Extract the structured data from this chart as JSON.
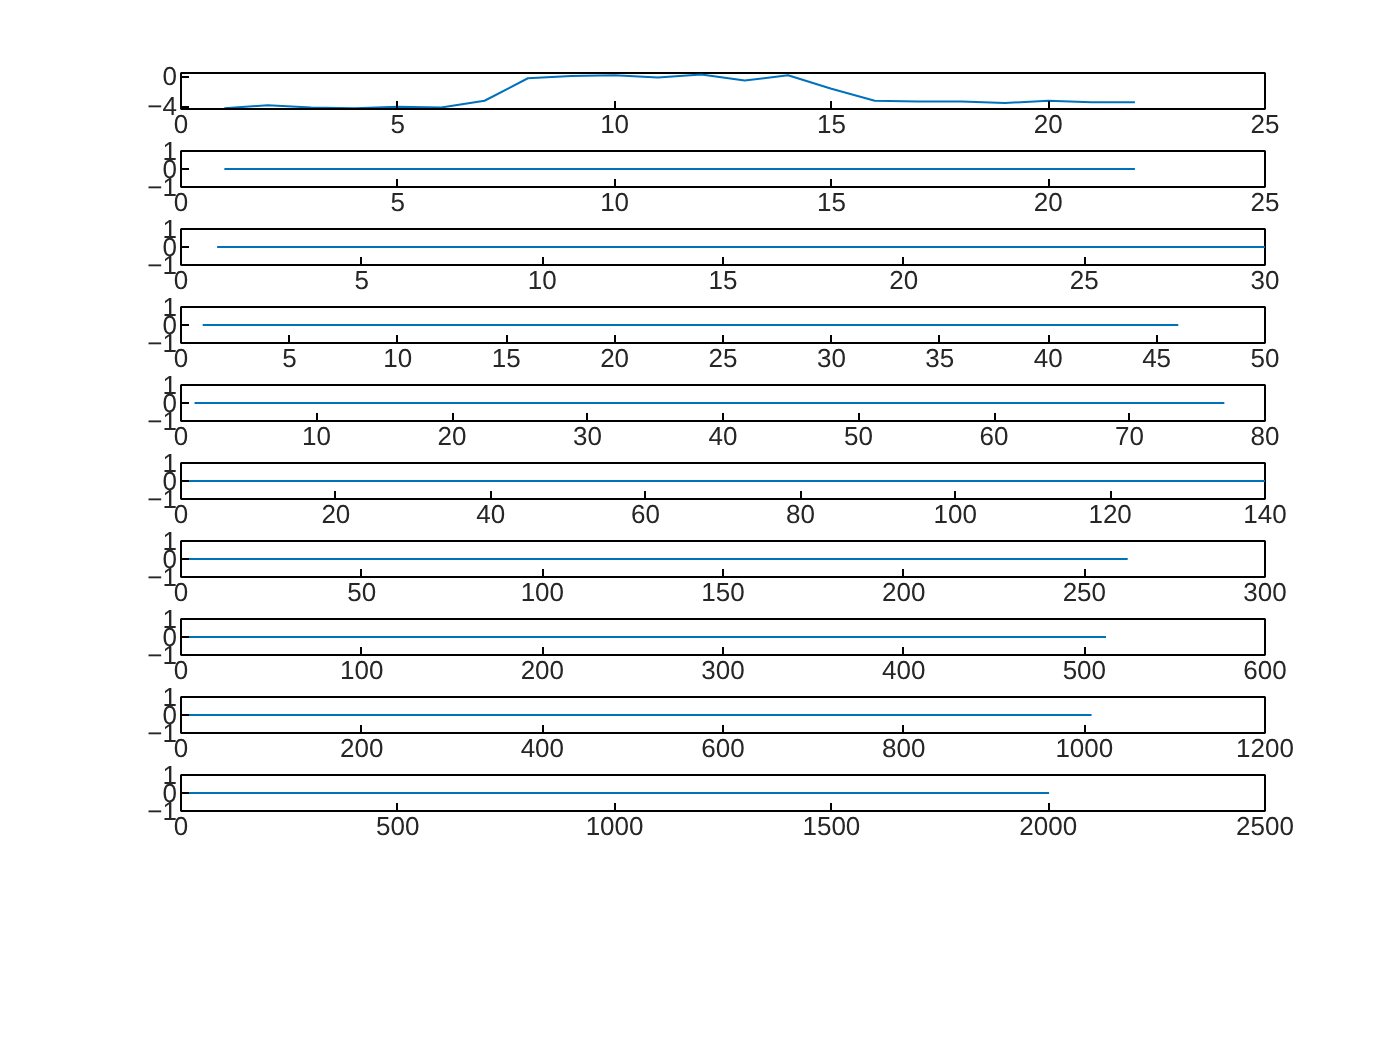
{
  "chart_data": [
    {
      "type": "line",
      "x": [
        1,
        2,
        3,
        4,
        5,
        6,
        7,
        8,
        9,
        10,
        11,
        12,
        13,
        14,
        15,
        16,
        17,
        18,
        19,
        20,
        21,
        22
      ],
      "series": [
        {
          "color": "#0072bd",
          "values": [
            -4.3,
            -3.9,
            -4.2,
            -4.3,
            -4.1,
            -4.2,
            -3.3,
            -0.3,
            0,
            0.1,
            -0.2,
            0.2,
            -0.6,
            0.1,
            -1.7,
            -3.3,
            -3.4,
            -3.4,
            -3.6,
            -3.3,
            -3.5,
            -3.5
          ]
        }
      ],
      "xlim": [
        0,
        25
      ],
      "xticks": [
        0,
        5,
        10,
        15,
        20,
        25
      ],
      "ylim": [
        -4.4,
        0.4
      ],
      "yticks": [
        -4,
        0
      ]
    },
    {
      "type": "line",
      "x": [
        1,
        22
      ],
      "series": [
        {
          "color": "#0072bd",
          "values": [
            0,
            0
          ]
        }
      ],
      "xlim": [
        0,
        25
      ],
      "xticks": [
        0,
        5,
        10,
        15,
        20,
        25
      ],
      "ylim": [
        -1,
        1
      ],
      "yticks": [
        -1,
        0,
        1
      ]
    },
    {
      "type": "line",
      "x": [
        1,
        30
      ],
      "series": [
        {
          "color": "#0072bd",
          "values": [
            0,
            0
          ]
        }
      ],
      "xlim": [
        0,
        30
      ],
      "xticks": [
        0,
        5,
        10,
        15,
        20,
        25,
        30
      ],
      "ylim": [
        -1,
        1
      ],
      "yticks": [
        -1,
        0,
        1
      ]
    },
    {
      "type": "line",
      "x": [
        1,
        46
      ],
      "series": [
        {
          "color": "#0072bd",
          "values": [
            0,
            0
          ]
        }
      ],
      "xlim": [
        0,
        50
      ],
      "xticks": [
        0,
        5,
        10,
        15,
        20,
        25,
        30,
        35,
        40,
        45,
        50
      ],
      "ylim": [
        -1,
        1
      ],
      "yticks": [
        -1,
        0,
        1
      ]
    },
    {
      "type": "line",
      "x": [
        1,
        77
      ],
      "series": [
        {
          "color": "#0072bd",
          "values": [
            0,
            0
          ]
        }
      ],
      "xlim": [
        0,
        80
      ],
      "xticks": [
        0,
        10,
        20,
        30,
        40,
        50,
        60,
        70,
        80
      ],
      "ylim": [
        -1,
        1
      ],
      "yticks": [
        -1,
        0,
        1
      ]
    },
    {
      "type": "line",
      "x": [
        1,
        140
      ],
      "series": [
        {
          "color": "#0072bd",
          "values": [
            0,
            0
          ]
        }
      ],
      "xlim": [
        0,
        140
      ],
      "xticks": [
        0,
        20,
        40,
        60,
        80,
        100,
        120,
        140
      ],
      "ylim": [
        -1,
        1
      ],
      "yticks": [
        -1,
        0,
        1
      ]
    },
    {
      "type": "line",
      "x": [
        1,
        262
      ],
      "series": [
        {
          "color": "#0072bd",
          "values": [
            0,
            0
          ]
        }
      ],
      "xlim": [
        0,
        300
      ],
      "xticks": [
        0,
        50,
        100,
        150,
        200,
        250,
        300
      ],
      "ylim": [
        -1,
        1
      ],
      "yticks": [
        -1,
        0,
        1
      ]
    },
    {
      "type": "line",
      "x": [
        1,
        512
      ],
      "series": [
        {
          "color": "#0072bd",
          "values": [
            0,
            0
          ]
        }
      ],
      "xlim": [
        0,
        600
      ],
      "xticks": [
        0,
        100,
        200,
        300,
        400,
        500,
        600
      ],
      "ylim": [
        -1,
        1
      ],
      "yticks": [
        -1,
        0,
        1
      ]
    },
    {
      "type": "line",
      "x": [
        1,
        1008
      ],
      "series": [
        {
          "color": "#0072bd",
          "values": [
            0,
            0
          ]
        }
      ],
      "xlim": [
        0,
        1200
      ],
      "xticks": [
        0,
        200,
        400,
        600,
        800,
        1000,
        1200
      ],
      "ylim": [
        -1,
        1
      ],
      "yticks": [
        -1,
        0,
        1
      ]
    },
    {
      "type": "line",
      "x": [
        1,
        2002
      ],
      "series": [
        {
          "color": "#0072bd",
          "values": [
            0,
            0
          ]
        }
      ],
      "xlim": [
        0,
        2500
      ],
      "xticks": [
        0,
        500,
        1000,
        1500,
        2000,
        2500
      ],
      "ylim": [
        -1,
        1
      ],
      "yticks": [
        -1,
        0,
        1
      ]
    }
  ]
}
